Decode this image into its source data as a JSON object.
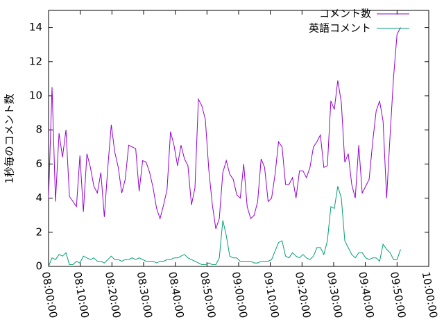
{
  "chart_data": {
    "type": "line",
    "ylabel": "1秒毎のコメント数",
    "x": [
      "08:00:00",
      "08:01:06",
      "08:02:12",
      "08:03:18",
      "08:04:24",
      "08:05:30",
      "08:06:36",
      "08:07:42",
      "08:08:48",
      "08:09:54",
      "08:11:00",
      "08:12:06",
      "08:13:12",
      "08:14:18",
      "08:15:24",
      "08:16:30",
      "08:17:36",
      "08:18:42",
      "08:19:48",
      "08:20:54",
      "08:22:00",
      "08:23:06",
      "08:24:12",
      "08:25:18",
      "08:26:24",
      "08:27:30",
      "08:28:36",
      "08:29:42",
      "08:30:48",
      "08:31:54",
      "08:33:00",
      "08:34:06",
      "08:35:12",
      "08:36:18",
      "08:37:24",
      "08:38:30",
      "08:39:36",
      "08:40:42",
      "08:41:48",
      "08:42:54",
      "08:44:00",
      "08:45:06",
      "08:46:12",
      "08:47:18",
      "08:48:24",
      "08:49:30",
      "08:50:36",
      "08:51:42",
      "08:52:48",
      "08:53:54",
      "08:55:00",
      "08:56:06",
      "08:57:12",
      "08:58:18",
      "08:59:24",
      "09:00:30",
      "09:01:36",
      "09:02:42",
      "09:03:48",
      "09:04:54",
      "09:06:00",
      "09:07:06",
      "09:08:12",
      "09:09:18",
      "09:10:24",
      "09:11:30",
      "09:12:36",
      "09:13:42",
      "09:14:48",
      "09:15:54",
      "09:17:00",
      "09:18:06",
      "09:19:12",
      "09:20:18",
      "09:21:24",
      "09:22:30",
      "09:23:36",
      "09:24:42",
      "09:25:48",
      "09:26:54",
      "09:28:00",
      "09:29:06",
      "09:30:12",
      "09:31:18",
      "09:32:24",
      "09:33:30",
      "09:34:36",
      "09:35:42",
      "09:36:48",
      "09:37:54",
      "09:39:00",
      "09:40:06",
      "09:41:12",
      "09:42:18",
      "09:43:24",
      "09:44:30",
      "09:45:36",
      "09:46:42",
      "09:47:48",
      "09:48:54",
      "09:50:00",
      "09:51:06"
    ],
    "series": [
      {
        "name": "コメント数",
        "color": "#9400d3",
        "values": [
          4,
          10.5,
          3.8,
          7.8,
          6.4,
          8,
          4.1,
          3.8,
          3.5,
          6.5,
          3.2,
          6.6,
          5.8,
          4.7,
          4.3,
          5.5,
          2.9,
          5.8,
          8.3,
          6.7,
          5.8,
          4.3,
          5.1,
          7.1,
          7,
          6.9,
          4.4,
          6.2,
          6.1,
          5.5,
          4.6,
          3.4,
          2.8,
          3.6,
          4.5,
          7.9,
          7.1,
          5.9,
          7.1,
          6.3,
          5.9,
          3.6,
          4.6,
          9.8,
          9.4,
          8.6,
          5.6,
          3.6,
          2.2,
          2.8,
          5.5,
          6.2,
          5.4,
          5.1,
          4.2,
          4,
          6,
          3.5,
          2.8,
          3,
          3.8,
          6.3,
          5.8,
          3.8,
          4,
          5.4,
          7.3,
          7,
          4.8,
          4.8,
          5.2,
          4,
          5.6,
          5.6,
          5.2,
          5.8,
          7,
          7.3,
          7.7,
          5.8,
          5.9,
          9.7,
          9.2,
          10.9,
          9.6,
          6.1,
          6.6,
          4.8,
          4,
          7.1,
          4.3,
          4.7,
          5.1,
          7.3,
          9.1,
          9.7,
          8.5,
          4,
          7.7,
          11.1,
          13.6,
          14
        ]
      },
      {
        "name": "英語コメント",
        "color": "#009e73",
        "values": [
          0,
          0.5,
          0.4,
          0.7,
          0.6,
          0.8,
          0.1,
          0.1,
          0.3,
          0.2,
          0.6,
          0.5,
          0.4,
          0.5,
          0.3,
          0.3,
          0.2,
          0.4,
          0.6,
          0.4,
          0.4,
          0.3,
          0.4,
          0.4,
          0.5,
          0.4,
          0.5,
          0.4,
          0.3,
          0.3,
          0.3,
          0.2,
          0.3,
          0.3,
          0.4,
          0.4,
          0.5,
          0.5,
          0.6,
          0.7,
          0.5,
          0.4,
          0.3,
          0.2,
          0.1,
          0.1,
          0.2,
          0.1,
          0.1,
          0.5,
          2.7,
          1.8,
          0.6,
          0.5,
          0.5,
          0.3,
          0.3,
          0.3,
          0.3,
          0.2,
          0.2,
          0.3,
          0.3,
          0.3,
          0.4,
          0.9,
          1.4,
          1.5,
          0.6,
          0.5,
          0.8,
          0.6,
          0.5,
          0.7,
          0.5,
          0.4,
          0.6,
          1.1,
          1.1,
          0.7,
          1.5,
          3.5,
          3.4,
          4.7,
          4,
          1.5,
          1.1,
          0.7,
          0.5,
          0.8,
          0.8,
          0.5,
          0.4,
          0.5,
          0.5,
          0.3,
          1.3,
          1,
          0.8,
          0.4,
          0.4,
          1
        ]
      }
    ],
    "xlim": [
      "08:00:00",
      "10:00:00"
    ],
    "xticks": [
      "08:00:00",
      "08:10:00",
      "08:20:00",
      "08:30:00",
      "08:40:00",
      "08:50:00",
      "09:00:00",
      "09:10:00",
      "09:20:00",
      "09:30:00",
      "09:40:00",
      "09:50:00",
      "10:00:00"
    ],
    "ylim": [
      0,
      15
    ],
    "yticks": [
      0,
      2,
      4,
      6,
      8,
      10,
      12,
      14
    ],
    "legend": "top-right"
  }
}
